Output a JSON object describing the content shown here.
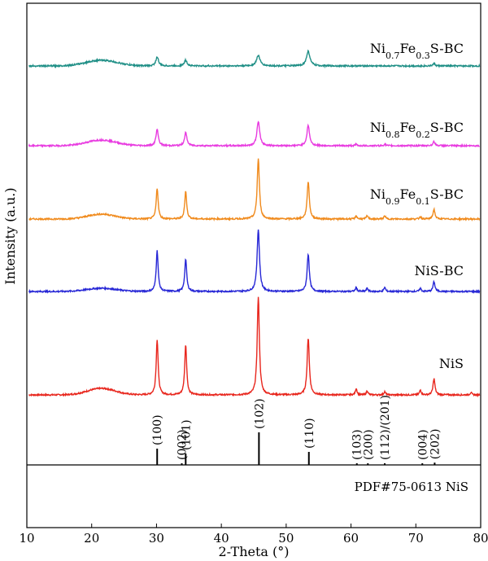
{
  "chart_data": {
    "type": "line",
    "xlabel": "2-Theta (°)",
    "ylabel": "Intensity (a.u.)",
    "xlim": [
      10,
      80
    ],
    "xticks": [
      10,
      20,
      30,
      40,
      50,
      60,
      70,
      80
    ],
    "grid": false,
    "series": [
      {
        "name": "NiS",
        "color": "#e8261d",
        "baseline": 485,
        "hump": {
          "center": 21.5,
          "width": 3.0,
          "height": 8
        },
        "peaks": [
          {
            "x": 30.1,
            "h": 68,
            "w": 0.18
          },
          {
            "x": 34.5,
            "h": 62,
            "w": 0.18
          },
          {
            "x": 45.7,
            "h": 120,
            "w": 0.2
          },
          {
            "x": 53.4,
            "h": 70,
            "w": 0.2
          },
          {
            "x": 60.8,
            "h": 8,
            "w": 0.15
          },
          {
            "x": 62.5,
            "h": 5,
            "w": 0.15
          },
          {
            "x": 65.2,
            "h": 4,
            "w": 0.15
          },
          {
            "x": 70.7,
            "h": 6,
            "w": 0.15
          },
          {
            "x": 72.8,
            "h": 20,
            "w": 0.18
          },
          {
            "x": 78.5,
            "h": 3,
            "w": 0.15
          }
        ]
      },
      {
        "name": "NiS-BC",
        "color": "#2727d6",
        "baseline": 358,
        "hump": {
          "center": 21.5,
          "width": 3.2,
          "height": 4
        },
        "peaks": [
          {
            "x": 30.1,
            "h": 50,
            "w": 0.18
          },
          {
            "x": 34.5,
            "h": 40,
            "w": 0.18
          },
          {
            "x": 45.7,
            "h": 76,
            "w": 0.22
          },
          {
            "x": 53.4,
            "h": 46,
            "w": 0.2
          },
          {
            "x": 60.8,
            "h": 5,
            "w": 0.15
          },
          {
            "x": 62.5,
            "h": 4,
            "w": 0.15
          },
          {
            "x": 65.2,
            "h": 5,
            "w": 0.15
          },
          {
            "x": 70.7,
            "h": 4,
            "w": 0.15
          },
          {
            "x": 72.8,
            "h": 12,
            "w": 0.18
          }
        ]
      },
      {
        "name": "Ni0.9Fe0.1S-BC",
        "color": "#f08a1c",
        "baseline": 269,
        "hump": {
          "center": 21.5,
          "width": 3.0,
          "height": 6
        },
        "peaks": [
          {
            "x": 30.1,
            "h": 38,
            "w": 0.18
          },
          {
            "x": 34.5,
            "h": 34,
            "w": 0.18
          },
          {
            "x": 45.7,
            "h": 74,
            "w": 0.2
          },
          {
            "x": 53.4,
            "h": 46,
            "w": 0.2
          },
          {
            "x": 60.8,
            "h": 4,
            "w": 0.15
          },
          {
            "x": 62.5,
            "h": 4,
            "w": 0.15
          },
          {
            "x": 65.2,
            "h": 4,
            "w": 0.15
          },
          {
            "x": 70.7,
            "h": 3,
            "w": 0.15
          },
          {
            "x": 72.8,
            "h": 12,
            "w": 0.18
          }
        ]
      },
      {
        "name": "Ni0.8Fe0.2S-BC",
        "color": "#e83ae0",
        "baseline": 179,
        "hump": {
          "center": 21.5,
          "width": 3.2,
          "height": 7
        },
        "peaks": [
          {
            "x": 30.1,
            "h": 20,
            "w": 0.22
          },
          {
            "x": 34.5,
            "h": 16,
            "w": 0.22
          },
          {
            "x": 45.7,
            "h": 30,
            "w": 0.25
          },
          {
            "x": 53.4,
            "h": 25,
            "w": 0.24
          },
          {
            "x": 60.8,
            "h": 2,
            "w": 0.15
          },
          {
            "x": 65.2,
            "h": 2,
            "w": 0.15
          },
          {
            "x": 72.8,
            "h": 5,
            "w": 0.2
          }
        ]
      },
      {
        "name": "Ni0.7Fe0.3S-BC",
        "color": "#1f8f86",
        "baseline": 81,
        "hump": {
          "center": 21.5,
          "width": 3.4,
          "height": 7
        },
        "peaks": [
          {
            "x": 30.1,
            "h": 11,
            "w": 0.25
          },
          {
            "x": 34.5,
            "h": 7,
            "w": 0.25
          },
          {
            "x": 45.7,
            "h": 13,
            "w": 0.32
          },
          {
            "x": 53.4,
            "h": 18,
            "w": 0.32
          },
          {
            "x": 72.8,
            "h": 3,
            "w": 0.2
          }
        ]
      }
    ],
    "series_labels": [
      {
        "series": 0,
        "parts": [
          {
            "t": "NiS"
          }
        ]
      },
      {
        "series": 1,
        "parts": [
          {
            "t": "NiS-BC"
          }
        ]
      },
      {
        "series": 2,
        "parts": [
          {
            "t": "Ni"
          },
          {
            "t": "0.9",
            "sub": true
          },
          {
            "t": "Fe"
          },
          {
            "t": "0.1",
            "sub": true
          },
          {
            "t": "S-BC"
          }
        ]
      },
      {
        "series": 3,
        "parts": [
          {
            "t": "Ni"
          },
          {
            "t": "0.8",
            "sub": true
          },
          {
            "t": "Fe"
          },
          {
            "t": "0.2",
            "sub": true
          },
          {
            "t": "S-BC"
          }
        ]
      },
      {
        "series": 4,
        "parts": [
          {
            "t": "Ni"
          },
          {
            "t": "0.7",
            "sub": true
          },
          {
            "t": "Fe"
          },
          {
            "t": "0.3",
            "sub": true
          },
          {
            "t": "S-BC"
          }
        ]
      }
    ],
    "reference": {
      "name": "PDF#75-0613 NiS",
      "lines": [
        {
          "x": 30.1,
          "hkl": "(100)",
          "intensity": 0.5
        },
        {
          "x": 33.9,
          "hkl": "(002)",
          "intensity": 0.03
        },
        {
          "x": 34.5,
          "hkl": "(101)",
          "intensity": 0.35
        },
        {
          "x": 45.8,
          "hkl": "(102)",
          "intensity": 1.0
        },
        {
          "x": 53.5,
          "hkl": "(110)",
          "intensity": 0.4
        },
        {
          "x": 60.9,
          "hkl": "(103)",
          "intensity": 0.03
        },
        {
          "x": 62.6,
          "hkl": "(200)",
          "intensity": 0.02
        },
        {
          "x": 65.2,
          "hkl": "(112)/(201)",
          "intensity": 0.03
        },
        {
          "x": 71.0,
          "hkl": "(004)",
          "intensity": 0.02
        },
        {
          "x": 72.9,
          "hkl": "(202)",
          "intensity": 0.07
        }
      ]
    }
  }
}
